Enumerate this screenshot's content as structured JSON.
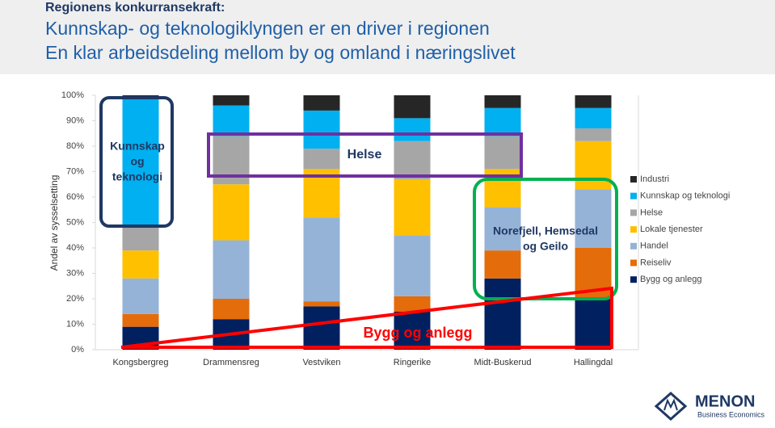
{
  "header": {
    "kicker": "Regionens konkurransekraft:",
    "title_lines": [
      "Kunnskap- og teknologiklyngen er en driver i regionen",
      "En klar arbeidsdeling mellom by og omland i næringslivet"
    ]
  },
  "logo": {
    "name": "MENON",
    "tagline": "Business Economics"
  },
  "chart_data": {
    "type": "stacked-bar",
    "y_label": "Andel av sysselsetting",
    "categories": [
      "Kongsbergreg",
      "Drammensreg",
      "Vestviken",
      "Ringerike",
      "Midt-Buskerud",
      "Hallingdal"
    ],
    "series": [
      {
        "name": "Industri",
        "color": "#262626",
        "values": [
          1,
          4,
          6,
          9,
          5,
          5
        ]
      },
      {
        "name": "Kunnskap og teknologi",
        "color": "#00b0f0",
        "values": [
          51,
          12,
          15,
          9,
          11,
          8
        ]
      },
      {
        "name": "Helse",
        "color": "#a6a6a6",
        "values": [
          9,
          19,
          8,
          15,
          13,
          5
        ]
      },
      {
        "name": "Lokale tjenester",
        "color": "#ffc000",
        "values": [
          11,
          22,
          19,
          22,
          15,
          19
        ]
      },
      {
        "name": "Handel",
        "color": "#95b3d7",
        "values": [
          14,
          23,
          33,
          24,
          17,
          23
        ]
      },
      {
        "name": "Reiseliv",
        "color": "#e46c0a",
        "values": [
          5,
          8,
          2,
          6,
          11,
          20
        ]
      },
      {
        "name": "Bygg og anlegg",
        "color": "#002060",
        "values": [
          9,
          12,
          17,
          15,
          28,
          20
        ]
      }
    ],
    "ylim": [
      0,
      100
    ],
    "yticks": [
      {
        "value": 0,
        "label": "0%"
      },
      {
        "value": 10,
        "label": "10%"
      },
      {
        "value": 20,
        "label": "20%"
      },
      {
        "value": 30,
        "label": "30%"
      },
      {
        "value": 40,
        "label": "40%"
      },
      {
        "value": 50,
        "label": "50%"
      },
      {
        "value": 60,
        "label": "60%"
      },
      {
        "value": 70,
        "label": "70%"
      },
      {
        "value": 80,
        "label": "80%"
      },
      {
        "value": 90,
        "label": "90%"
      },
      {
        "value": 100,
        "label": "100%"
      }
    ],
    "legend": "right",
    "annotations": [
      {
        "lines": [
          "Kunnskap",
          "og",
          "teknologi"
        ]
      },
      {
        "lines": [
          "Helse"
        ]
      },
      {
        "lines": [
          "Norefjell, Hemsedal",
          "og Geilo"
        ]
      },
      {
        "lines": [
          "Bygg og anlegg"
        ]
      }
    ]
  }
}
